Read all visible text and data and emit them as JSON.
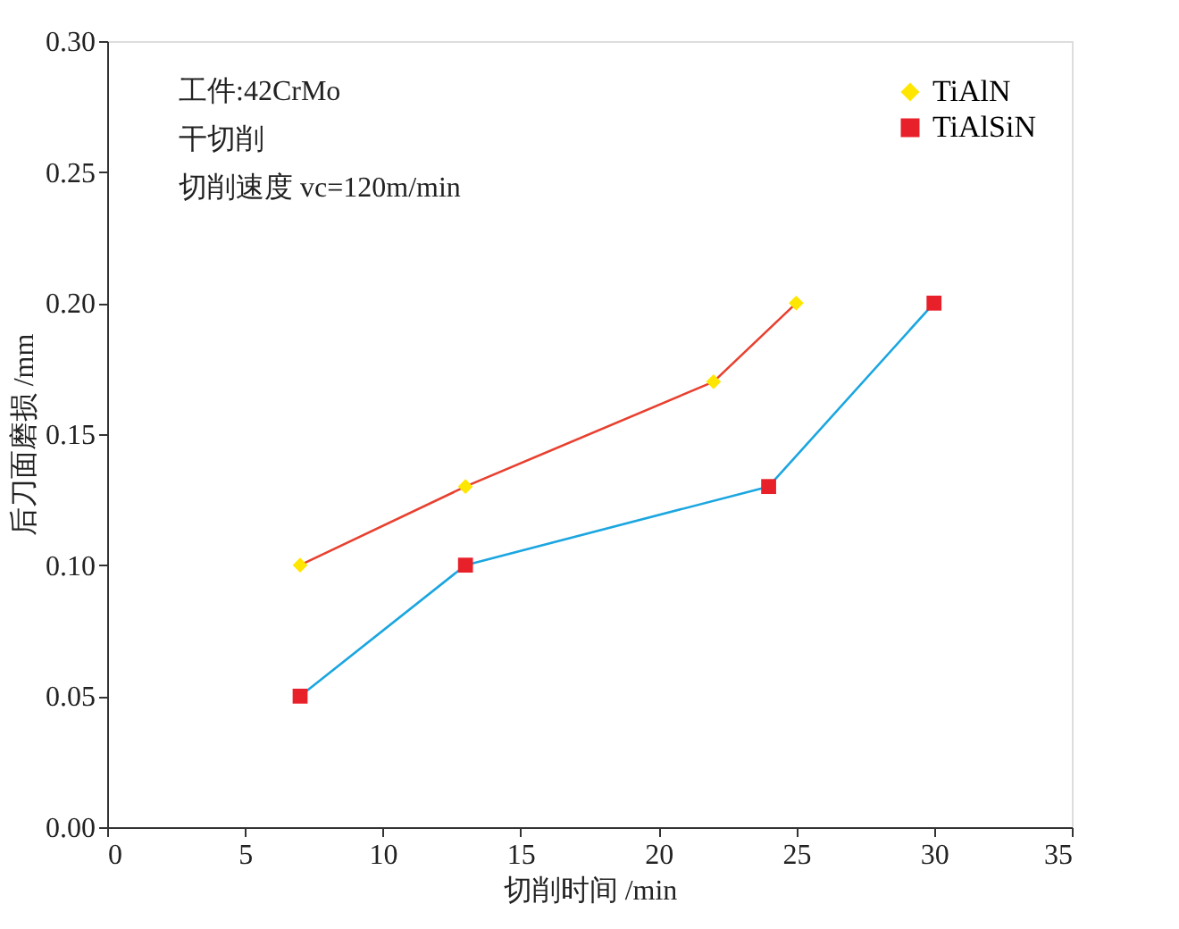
{
  "chart_data": {
    "type": "line",
    "xlabel": "切削时间 /min",
    "ylabel": "后刀面磨损 /mm",
    "annotations": [
      "工件:42CrMo",
      "干切削",
      "切削速度 vc=120m/min"
    ],
    "series": [
      {
        "name": "TiAlN",
        "color": "#e8402f",
        "colors": [
          "#ffe600",
          "#ffe600",
          "#ffe600",
          "#ffe600"
        ],
        "marker": "diamond",
        "x": [
          7,
          13,
          22,
          25
        ],
        "values": [
          0.1,
          0.13,
          0.17,
          0.2
        ]
      },
      {
        "name": "TiAlSiN",
        "color": "#1ba6e0",
        "colors": [
          "#e8202a",
          "#e8202a",
          "#e8202a",
          "#e8202a"
        ],
        "marker": "square",
        "x": [
          7,
          13,
          24,
          30
        ],
        "values": [
          0.05,
          0.1,
          0.13,
          0.2
        ]
      }
    ],
    "xlim": [
      0,
      35
    ],
    "xticks": [
      0,
      5,
      10,
      15,
      20,
      25,
      30,
      35
    ],
    "ylim": [
      0,
      0.3
    ],
    "yticks": [
      {
        "value": 0,
        "label": "0.00"
      },
      {
        "value": 0.05,
        "label": "0.05"
      },
      {
        "value": 0.1,
        "label": "0.10"
      },
      {
        "value": 0.15,
        "label": "0.15"
      },
      {
        "value": 0.2,
        "label": "0.20"
      },
      {
        "value": 0.25,
        "label": "0.25"
      },
      {
        "value": 0.3,
        "label": "0.30"
      }
    ],
    "grid": false,
    "legend": "top right",
    "line_style": "solid"
  }
}
